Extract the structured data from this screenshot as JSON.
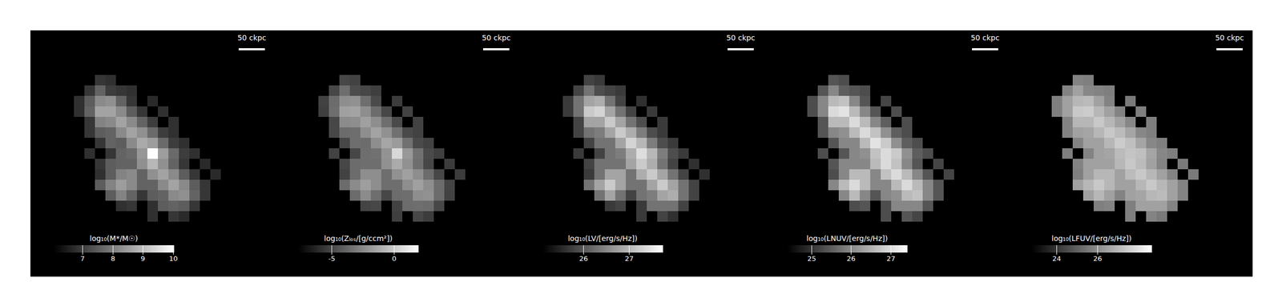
{
  "cells": {
    "cell_size": 20,
    "rows": [
      {
        "y": 140,
        "x": [
          -100,
          -80
        ]
      },
      {
        "y": 120,
        "x": [
          -120,
          -100,
          -80,
          -60,
          -40
        ]
      },
      {
        "y": 100,
        "x": [
          -140,
          -120,
          -100,
          -80,
          -60,
          -40,
          0
        ]
      },
      {
        "y": 80,
        "x": [
          -140,
          -120,
          -100,
          -80,
          -60,
          -40,
          -20,
          20
        ]
      },
      {
        "y": 60,
        "x": [
          -120,
          -100,
          -80,
          -60,
          -40,
          -20,
          0,
          40
        ]
      },
      {
        "y": 40,
        "x": [
          -120,
          -100,
          -80,
          -60,
          -40,
          -20,
          0,
          20,
          40
        ]
      },
      {
        "y": 20,
        "x": [
          -100,
          -80,
          -60,
          -40,
          -20,
          0,
          20,
          40,
          60
        ]
      },
      {
        "y": 0,
        "x": [
          -120,
          -80,
          -60,
          -40,
          -20,
          0,
          20,
          40,
          60,
          80
        ]
      },
      {
        "y": -20,
        "x": [
          -100,
          -80,
          -60,
          -40,
          -20,
          0,
          20,
          40,
          60,
          100
        ]
      },
      {
        "y": -40,
        "x": [
          -100,
          -80,
          -60,
          -40,
          -20,
          0,
          20,
          40,
          60,
          80,
          120
        ]
      },
      {
        "y": -60,
        "x": [
          -100,
          -80,
          -60,
          -40,
          -20,
          0,
          20,
          40,
          60,
          80,
          100
        ]
      },
      {
        "y": -80,
        "x": [
          -80,
          -60,
          -40,
          -20,
          0,
          20,
          40,
          60,
          80,
          100
        ]
      },
      {
        "y": -100,
        "x": [
          -60,
          -40,
          0,
          20,
          40,
          60,
          80
        ]
      },
      {
        "y": -120,
        "x": [
          0,
          40,
          60
        ]
      }
    ]
  },
  "chart_data": [
    {
      "type": "heatmap",
      "xlim": [
        -233,
        233
      ],
      "ylim": [
        -235,
        235
      ],
      "tick_labels": false,
      "scale_bar": {
        "length": 50,
        "label": "50 ckpc"
      },
      "colorbar": {
        "label": "log₁₀(M*/M☉)",
        "range": [
          6.05,
          10.03
        ],
        "ticks": [
          7,
          8,
          9,
          10
        ]
      },
      "values": [
        [
          6.9,
          6.8
        ],
        [
          6.9,
          7.6,
          7.0,
          6.9,
          6.8
        ],
        [
          6.8,
          7.5,
          8.2,
          8.3,
          7.6,
          6.9,
          6.7
        ],
        [
          6.8,
          7.6,
          8.6,
          8.6,
          8.2,
          7.5,
          6.9,
          6.8
        ],
        [
          6.9,
          8.1,
          8.2,
          8.6,
          8.2,
          7.6,
          7.0,
          6.8
        ],
        [
          6.9,
          7.5,
          7.6,
          8.2,
          8.6,
          8.3,
          7.7,
          7.0,
          6.8
        ],
        [
          6.9,
          7.6,
          7.5,
          8.2,
          8.7,
          8.5,
          7.7,
          7.0,
          6.8
        ],
        [
          6.8,
          6.9,
          7.6,
          7.7,
          8.4,
          10.0,
          8.5,
          7.7,
          7.0,
          6.8
        ],
        [
          6.9,
          7.5,
          7.6,
          7.6,
          8.3,
          8.9,
          8.3,
          7.6,
          6.9,
          6.7
        ],
        [
          6.8,
          7.5,
          8.1,
          8.2,
          7.6,
          8.3,
          8.6,
          8.2,
          7.5,
          6.9,
          6.7
        ],
        [
          7.5,
          8.1,
          8.5,
          8.2,
          7.6,
          7.6,
          8.2,
          8.6,
          8.2,
          7.5,
          6.9
        ],
        [
          7.5,
          8.1,
          7.6,
          6.9,
          7.5,
          7.6,
          8.2,
          8.3,
          7.6,
          6.9
        ],
        [
          6.8,
          6.9,
          6.8,
          7.5,
          7.6,
          7.5,
          6.9
        ],
        [
          6.8,
          6.9,
          6.7
        ]
      ]
    },
    {
      "type": "heatmap",
      "xlim": [
        -233,
        233
      ],
      "ylim": [
        -235,
        235
      ],
      "tick_labels": false,
      "scale_bar": {
        "length": 50,
        "label": "50 ckpc"
      },
      "colorbar": {
        "label": "log₁₀(Zₗₒₛ/[g/ccm²])",
        "range": [
          -7.7,
          2.0
        ],
        "ticks": [
          -5,
          0
        ]
      },
      "values": [
        [
          -5.0,
          -5.2
        ],
        [
          -5.0,
          -3.5,
          -4.8,
          -5.0,
          -5.3
        ],
        [
          -5.2,
          -3.6,
          -2.3,
          -2.2,
          -3.5,
          -4.9,
          -5.4
        ],
        [
          -5.3,
          -3.5,
          -1.6,
          -1.5,
          -2.3,
          -3.6,
          -5.0,
          -5.2
        ],
        [
          -5.0,
          -2.4,
          -2.3,
          -1.6,
          -2.3,
          -3.5,
          -4.9,
          -5.2
        ],
        [
          -5.0,
          -3.6,
          -3.5,
          -2.3,
          -1.5,
          -2.2,
          -3.4,
          -4.9,
          -5.2
        ],
        [
          -5.0,
          -3.5,
          -3.6,
          -2.3,
          -1.4,
          -1.8,
          -3.4,
          -4.9,
          -5.2
        ],
        [
          -5.2,
          -5.0,
          -3.5,
          -3.4,
          -2.1,
          0.5,
          -1.9,
          -3.4,
          -4.9,
          -5.3
        ],
        [
          -5.0,
          -3.6,
          -3.5,
          -3.5,
          -2.2,
          -1.2,
          -2.2,
          -3.5,
          -5.0,
          -5.4
        ],
        [
          -5.2,
          -3.6,
          -2.3,
          -2.3,
          -3.5,
          -2.2,
          -1.6,
          -2.3,
          -3.6,
          -5.0,
          -5.4
        ],
        [
          -3.6,
          -2.4,
          -1.7,
          -2.3,
          -3.5,
          -3.5,
          -2.3,
          -1.6,
          -2.3,
          -3.6,
          -5.1
        ],
        [
          -3.6,
          -2.4,
          -3.5,
          -5.0,
          -3.6,
          -3.5,
          -2.3,
          -2.2,
          -3.6,
          -5.2
        ],
        [
          -5.1,
          -5.0,
          -5.2,
          -3.6,
          -3.5,
          -3.6,
          -5.0
        ],
        [
          -5.3,
          -5.0,
          -5.4
        ]
      ]
    },
    {
      "type": "heatmap",
      "xlim": [
        -233,
        233
      ],
      "ylim": [
        -235,
        235
      ],
      "tick_labels": false,
      "scale_bar": {
        "length": 50,
        "label": "50 ckpc"
      },
      "colorbar": {
        "label": "log₁₀(LV/[erg/s/Hz])",
        "range": [
          25.1,
          27.75
        ],
        "ticks": [
          26,
          27
        ]
      },
      "values": [
        [
          25.8,
          25.7
        ],
        [
          25.8,
          26.3,
          25.9,
          25.8,
          25.7
        ],
        [
          25.7,
          26.3,
          26.8,
          26.9,
          26.3,
          25.8,
          25.6
        ],
        [
          25.7,
          26.3,
          27.2,
          27.3,
          26.8,
          26.3,
          25.8,
          25.7
        ],
        [
          25.8,
          26.8,
          26.8,
          27.2,
          26.8,
          26.3,
          25.9,
          25.7
        ],
        [
          25.8,
          26.3,
          26.4,
          26.8,
          27.2,
          26.9,
          26.4,
          25.9,
          25.7
        ],
        [
          25.8,
          26.3,
          26.3,
          26.8,
          27.3,
          27.0,
          26.4,
          25.9,
          25.7
        ],
        [
          25.7,
          25.8,
          26.3,
          26.4,
          26.9,
          27.4,
          27.0,
          26.4,
          25.9,
          25.7
        ],
        [
          25.8,
          26.3,
          26.3,
          26.3,
          26.8,
          27.2,
          26.9,
          26.3,
          25.8,
          25.6
        ],
        [
          25.7,
          26.3,
          26.8,
          26.8,
          26.3,
          26.9,
          27.2,
          26.8,
          26.3,
          25.8,
          25.6
        ],
        [
          26.3,
          26.8,
          27.2,
          26.8,
          26.3,
          26.3,
          26.8,
          27.2,
          26.8,
          26.3,
          25.8
        ],
        [
          26.3,
          26.8,
          26.3,
          25.8,
          26.3,
          26.4,
          26.8,
          26.9,
          26.3,
          25.8
        ],
        [
          25.7,
          25.8,
          25.7,
          26.3,
          26.3,
          26.3,
          25.8
        ],
        [
          25.7,
          25.8,
          25.6
        ]
      ]
    },
    {
      "type": "heatmap",
      "xlim": [
        -233,
        233
      ],
      "ylim": [
        -235,
        235
      ],
      "tick_labels": false,
      "scale_bar": {
        "length": 50,
        "label": "50 ckpc"
      },
      "colorbar": {
        "label": "log₁₀(LNUV/[erg/s/Hz])",
        "range": [
          24.38,
          27.43
        ],
        "ticks": [
          25,
          26,
          27
        ]
      },
      "values": [
        [
          25.4,
          25.3
        ],
        [
          25.4,
          26.0,
          25.5,
          25.4,
          25.3
        ],
        [
          25.3,
          26.0,
          26.6,
          26.7,
          26.0,
          25.4,
          25.2
        ],
        [
          25.3,
          26.0,
          27.0,
          27.1,
          26.6,
          26.0,
          25.4,
          25.3
        ],
        [
          25.4,
          26.6,
          26.6,
          27.0,
          26.6,
          26.0,
          25.5,
          25.3
        ],
        [
          25.4,
          26.0,
          26.1,
          26.6,
          27.0,
          26.7,
          26.1,
          25.5,
          25.3
        ],
        [
          25.4,
          26.0,
          26.0,
          26.6,
          27.1,
          26.8,
          26.1,
          25.5,
          25.3
        ],
        [
          25.3,
          25.4,
          26.0,
          26.1,
          26.7,
          27.0,
          26.8,
          26.1,
          25.5,
          25.3
        ],
        [
          25.4,
          26.0,
          26.0,
          26.0,
          26.6,
          27.0,
          26.7,
          26.0,
          25.4,
          25.2
        ],
        [
          25.3,
          26.0,
          26.6,
          26.6,
          26.0,
          26.7,
          27.0,
          26.6,
          26.0,
          25.4,
          25.2
        ],
        [
          26.0,
          26.6,
          27.0,
          26.6,
          26.0,
          26.0,
          26.6,
          27.0,
          26.6,
          26.0,
          25.4
        ],
        [
          26.0,
          26.6,
          26.0,
          25.4,
          26.0,
          26.1,
          26.6,
          26.7,
          26.0,
          25.4
        ],
        [
          25.3,
          25.4,
          25.3,
          26.0,
          26.0,
          26.0,
          25.4
        ],
        [
          25.3,
          25.4,
          25.2
        ]
      ]
    },
    {
      "type": "heatmap",
      "xlim": [
        -233,
        233
      ],
      "ylim": [
        -235,
        235
      ],
      "tick_labels": false,
      "scale_bar": {
        "length": 50,
        "label": "50 ckpc"
      },
      "colorbar": {
        "label": "log₁₀(LFUV/[erg/s/Hz])",
        "range": [
          22.76,
          28.68
        ],
        "ticks": [
          24,
          26
        ]
      },
      "values": [
        [
          25.8,
          25.7
        ],
        [
          25.8,
          26.5,
          25.9,
          25.8,
          25.7
        ],
        [
          25.7,
          26.5,
          27.0,
          27.1,
          26.5,
          25.8,
          25.6
        ],
        [
          25.7,
          26.5,
          27.4,
          27.5,
          27.0,
          26.5,
          25.8,
          25.7
        ],
        [
          25.8,
          27.0,
          27.0,
          27.4,
          27.0,
          26.5,
          25.9,
          25.7
        ],
        [
          25.8,
          26.5,
          26.6,
          27.0,
          27.4,
          27.1,
          26.6,
          25.9,
          25.7
        ],
        [
          25.8,
          26.5,
          26.5,
          27.0,
          27.5,
          27.2,
          26.6,
          25.9,
          25.7
        ],
        [
          25.7,
          25.8,
          26.5,
          26.6,
          27.1,
          27.3,
          27.2,
          26.6,
          25.9,
          25.7
        ],
        [
          25.8,
          26.5,
          26.5,
          26.5,
          27.0,
          27.4,
          27.1,
          26.5,
          25.8,
          25.6
        ],
        [
          25.7,
          26.5,
          27.0,
          27.0,
          26.5,
          27.1,
          27.4,
          27.0,
          26.5,
          25.8,
          25.6
        ],
        [
          26.5,
          27.0,
          27.4,
          27.0,
          26.5,
          26.5,
          27.0,
          27.4,
          27.0,
          26.5,
          25.8
        ],
        [
          26.5,
          27.0,
          26.5,
          25.8,
          26.5,
          26.6,
          27.0,
          27.1,
          26.5,
          25.8
        ],
        [
          25.7,
          25.8,
          25.7,
          26.5,
          26.5,
          26.5,
          25.8
        ],
        [
          25.7,
          25.8,
          25.6
        ]
      ]
    }
  ]
}
